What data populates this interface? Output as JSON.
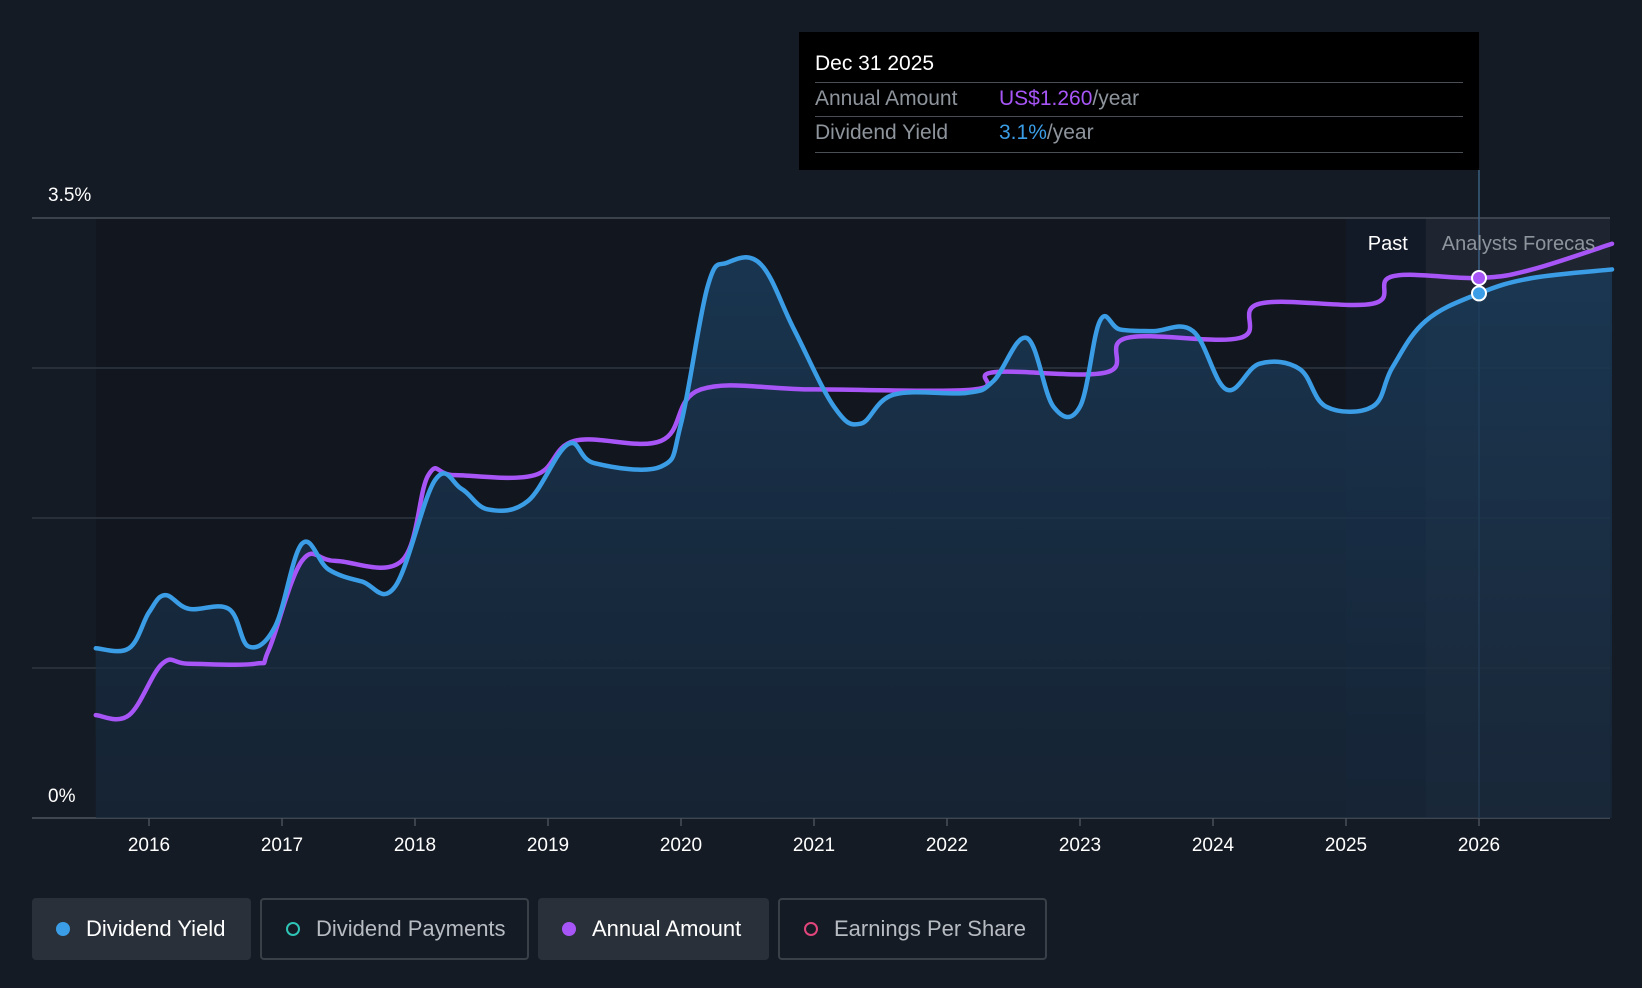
{
  "tooltip": {
    "date": "Dec 31 2025",
    "annual_amount_label": "Annual Amount",
    "annual_amount_value": "US$1.260",
    "annual_amount_unit": "/year",
    "dividend_yield_label": "Dividend Yield",
    "dividend_yield_value": "3.1%",
    "dividend_yield_unit": "/year"
  },
  "regions": {
    "past": "Past",
    "forecast": "Analysts Forecas"
  },
  "legend": [
    {
      "label": "Dividend Yield",
      "active": true,
      "color": "#3b9de6",
      "hollow": false
    },
    {
      "label": "Dividend Payments",
      "active": false,
      "color": "#2ec4b6",
      "hollow": true
    },
    {
      "label": "Annual Amount",
      "active": true,
      "color": "#a855f7",
      "hollow": false
    },
    {
      "label": "Earnings Per Share",
      "active": false,
      "color": "#e0457b",
      "hollow": true
    }
  ],
  "colors": {
    "yield": "#3b9de6",
    "amount": "#a855f7",
    "background": "#151b24"
  },
  "chart_data": {
    "type": "line",
    "y_tick_labels": [
      "3.5%",
      "0%"
    ],
    "ylim": [
      0,
      3.5
    ],
    "x_ticks": [
      2016,
      2017,
      2018,
      2019,
      2020,
      2021,
      2022,
      2023,
      2024,
      2025,
      2026
    ],
    "xlim": [
      2015.4,
      2027.0
    ],
    "past_forecast_boundary": 2025.6,
    "highlight_x": 2026.0,
    "series": [
      {
        "name": "Dividend Yield",
        "x": [
          2015.6,
          2015.85,
          2016.0,
          2016.12,
          2016.3,
          2016.6,
          2016.75,
          2016.95,
          2017.15,
          2017.35,
          2017.6,
          2017.85,
          2018.15,
          2018.35,
          2018.55,
          2018.85,
          2019.15,
          2019.35,
          2019.85,
          2020.0,
          2020.2,
          2020.35,
          2020.6,
          2020.85,
          2021.15,
          2021.35,
          2021.6,
          2022.15,
          2022.35,
          2022.6,
          2022.8,
          2023.0,
          2023.15,
          2023.3,
          2023.55,
          2023.85,
          2024.1,
          2024.35,
          2024.65,
          2024.85,
          2025.2,
          2025.35,
          2025.6,
          2026.0,
          2026.4,
          2027.0
        ],
        "values": [
          0.99,
          0.99,
          1.2,
          1.3,
          1.22,
          1.22,
          1.0,
          1.12,
          1.6,
          1.45,
          1.38,
          1.35,
          1.97,
          1.92,
          1.8,
          1.85,
          2.18,
          2.07,
          2.05,
          2.3,
          3.1,
          3.24,
          3.23,
          2.85,
          2.4,
          2.3,
          2.47,
          2.48,
          2.55,
          2.8,
          2.4,
          2.4,
          2.9,
          2.85,
          2.84,
          2.84,
          2.5,
          2.65,
          2.62,
          2.4,
          2.4,
          2.63,
          2.9,
          3.06,
          3.15,
          3.2
        ]
      },
      {
        "name": "Annual Amount",
        "x": [
          2015.6,
          2015.85,
          2016.1,
          2016.3,
          2016.8,
          2016.9,
          2017.15,
          2017.4,
          2017.9,
          2018.1,
          2018.3,
          2018.9,
          2019.2,
          2019.85,
          2020.15,
          2021.0,
          2022.2,
          2022.35,
          2023.2,
          2023.35,
          2024.2,
          2024.35,
          2025.2,
          2025.35,
          2026.0,
          2026.4,
          2027.0
        ],
        "values": [
          0.6,
          0.6,
          0.9,
          0.9,
          0.9,
          0.98,
          1.5,
          1.5,
          1.5,
          2.0,
          2.0,
          2.0,
          2.2,
          2.2,
          2.5,
          2.5,
          2.5,
          2.6,
          2.6,
          2.8,
          2.8,
          3.0,
          3.0,
          3.16,
          3.15,
          3.2,
          3.35
        ]
      }
    ]
  }
}
